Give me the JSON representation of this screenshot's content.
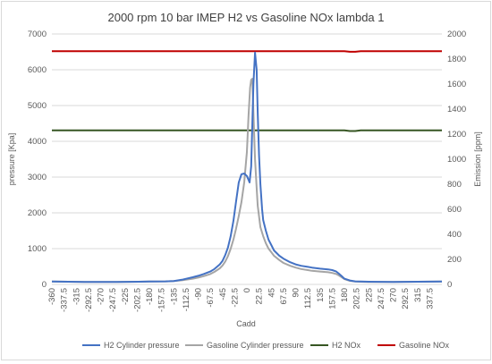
{
  "chart_data": {
    "type": "line",
    "title": "2000 rpm 10 bar IMEP H2 vs Gasoline NOx lambda 1",
    "xlabel": "Cadd",
    "ylabel_left": "pressure [Kpa]",
    "ylabel_right": "Emission [ppm]",
    "xlim": [
      -360,
      360
    ],
    "ylim_left": [
      0,
      7000
    ],
    "ylim_right": [
      0,
      2000
    ],
    "x_ticks": [
      "-360",
      "-337.5",
      "-315",
      "-292.5",
      "-270",
      "-247.5",
      "-225",
      "-202.5",
      "-180",
      "-157.5",
      "-135",
      "-112.5",
      "-90",
      "-67.5",
      "-45",
      "-22.5",
      "0",
      "22.5",
      "45",
      "67.5",
      "90",
      "112.5",
      "135",
      "157.5",
      "180",
      "202.5",
      "225",
      "247.5",
      "270",
      "292.5",
      "315",
      "337.5"
    ],
    "y_ticks_left": [
      "0",
      "1000",
      "2000",
      "3000",
      "4000",
      "5000",
      "6000",
      "7000"
    ],
    "y_ticks_right": [
      "0",
      "200",
      "400",
      "600",
      "800",
      "1000",
      "1200",
      "1400",
      "1600",
      "1800",
      "2000"
    ],
    "grid": true,
    "legend_position": "bottom",
    "series": [
      {
        "name": "H2 Cylinder pressure",
        "axis": "left",
        "color": "#4472c4",
        "x": [
          -360,
          -300,
          -240,
          -200,
          -180,
          -150,
          -135,
          -120,
          -100,
          -90,
          -80,
          -67.5,
          -60,
          -50,
          -45,
          -40,
          -35,
          -30,
          -25,
          -20,
          -15,
          -10,
          -5,
          0,
          5,
          8,
          10,
          12,
          15,
          18,
          20,
          22.5,
          25,
          28,
          30,
          35,
          40,
          45,
          50,
          60,
          67.5,
          80,
          90,
          100,
          112.5,
          120,
          135,
          150,
          157.5,
          165,
          170,
          175,
          180,
          190,
          200,
          210,
          225,
          270,
          315,
          360
        ],
        "y": [
          80,
          70,
          70,
          75,
          80,
          85,
          95,
          130,
          200,
          240,
          290,
          360,
          430,
          560,
          660,
          820,
          1030,
          1340,
          1770,
          2320,
          2850,
          3080,
          3100,
          3030,
          2850,
          3300,
          4500,
          5600,
          6480,
          6000,
          4800,
          3600,
          2800,
          2100,
          1800,
          1500,
          1250,
          1100,
          950,
          800,
          720,
          620,
          560,
          520,
          490,
          470,
          440,
          420,
          400,
          360,
          300,
          230,
          160,
          110,
          85,
          80,
          75,
          70,
          75,
          80
        ]
      },
      {
        "name": "Gasoline Cylinder pressure",
        "axis": "left",
        "color": "#a5a5a5",
        "x": [
          -360,
          -300,
          -240,
          -200,
          -180,
          -150,
          -135,
          -120,
          -100,
          -90,
          -80,
          -67.5,
          -60,
          -50,
          -45,
          -40,
          -35,
          -30,
          -25,
          -20,
          -15,
          -10,
          -5,
          0,
          3,
          6,
          8,
          10,
          12,
          15,
          18,
          20,
          22.5,
          25,
          30,
          35,
          40,
          45,
          50,
          60,
          67.5,
          80,
          90,
          100,
          112.5,
          120,
          135,
          150,
          157.5,
          165,
          170,
          175,
          180,
          190,
          200,
          210,
          225,
          270,
          315,
          360
        ],
        "y": [
          80,
          70,
          70,
          75,
          80,
          85,
          95,
          115,
          160,
          190,
          230,
          290,
          350,
          450,
          530,
          640,
          790,
          990,
          1250,
          1560,
          1910,
          2300,
          2850,
          3700,
          4700,
          5500,
          5720,
          5750,
          4800,
          3500,
          2700,
          2200,
          1900,
          1600,
          1350,
          1150,
          1000,
          900,
          800,
          680,
          600,
          520,
          470,
          430,
          400,
          380,
          360,
          340,
          320,
          290,
          250,
          200,
          150,
          100,
          80,
          75,
          70,
          70,
          75,
          80
        ]
      },
      {
        "name": "H2 NOx",
        "axis": "right",
        "color": "#375623",
        "x": [
          -360,
          180,
          190,
          200,
          210,
          360
        ],
        "y": [
          1230,
          1230,
          1225,
          1225,
          1230,
          1230
        ]
      },
      {
        "name": "Gasoline NOx",
        "axis": "right",
        "color": "#c00000",
        "x": [
          -360,
          180,
          190,
          200,
          210,
          360
        ],
        "y": [
          1862,
          1862,
          1858,
          1858,
          1862,
          1862
        ]
      }
    ]
  }
}
